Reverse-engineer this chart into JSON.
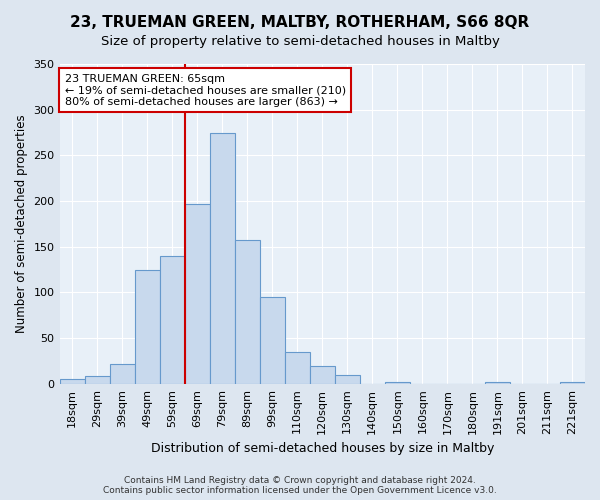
{
  "title": "23, TRUEMAN GREEN, MALTBY, ROTHERHAM, S66 8QR",
  "subtitle": "Size of property relative to semi-detached houses in Maltby",
  "xlabel": "Distribution of semi-detached houses by size in Maltby",
  "ylabel": "Number of semi-detached properties",
  "bar_labels": [
    "18sqm",
    "29sqm",
    "39sqm",
    "49sqm",
    "59sqm",
    "69sqm",
    "79sqm",
    "89sqm",
    "99sqm",
    "110sqm",
    "120sqm",
    "130sqm",
    "140sqm",
    "150sqm",
    "160sqm",
    "170sqm",
    "180sqm",
    "191sqm",
    "201sqm",
    "211sqm",
    "221sqm"
  ],
  "bar_values": [
    5,
    8,
    22,
    125,
    140,
    197,
    275,
    157,
    95,
    35,
    20,
    10,
    0,
    2,
    0,
    0,
    0,
    2,
    0,
    0,
    2
  ],
  "bar_color": "#c8d9ed",
  "bar_edge_color": "#6699cc",
  "vline_color": "#cc0000",
  "annotation_text": "23 TRUEMAN GREEN: 65sqm\n← 19% of semi-detached houses are smaller (210)\n80% of semi-detached houses are larger (863) →",
  "annotation_box_facecolor": "#ffffff",
  "annotation_box_edgecolor": "#cc0000",
  "ylim": [
    0,
    350
  ],
  "yticks": [
    0,
    50,
    100,
    150,
    200,
    250,
    300,
    350
  ],
  "bg_color": "#dde6f0",
  "plot_bg_color": "#e8f0f8",
  "grid_color": "#ffffff",
  "footer": "Contains HM Land Registry data © Crown copyright and database right 2024.\nContains public sector information licensed under the Open Government Licence v3.0.",
  "title_fontsize": 11,
  "subtitle_fontsize": 9.5,
  "xlabel_fontsize": 9,
  "ylabel_fontsize": 8.5,
  "tick_fontsize": 8,
  "footer_fontsize": 6.5
}
